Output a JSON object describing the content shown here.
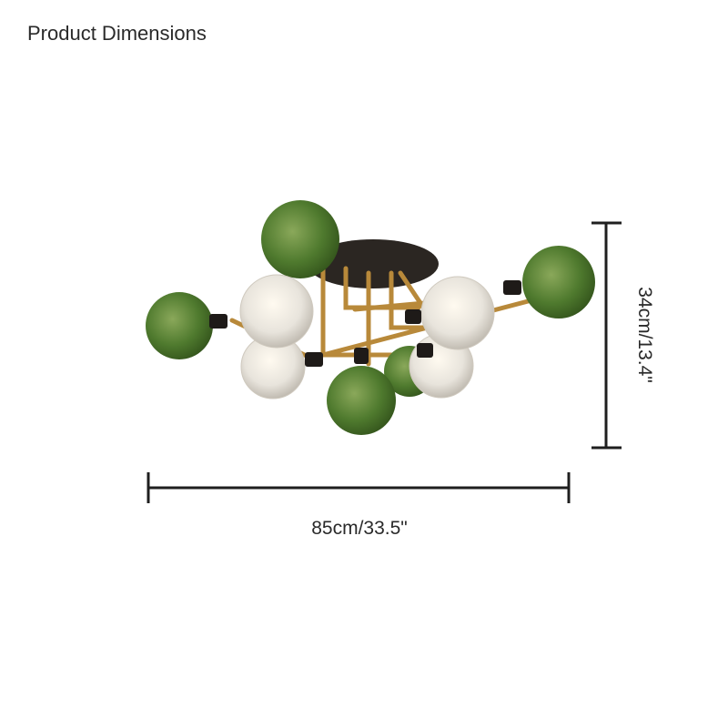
{
  "title": "Product Dimensions",
  "dimensions": {
    "width_label": "85cm/33.5\"",
    "height_label": "34cm/13.4\""
  },
  "product": {
    "name_icon": "ceiling-light-illustration",
    "colors": {
      "green_glass": "#4f7a2e",
      "clear_glass": "#e8e4dc",
      "brass": "#b8893a",
      "canopy": "#2b2622",
      "dimension_line": "#1f1f1f"
    }
  }
}
